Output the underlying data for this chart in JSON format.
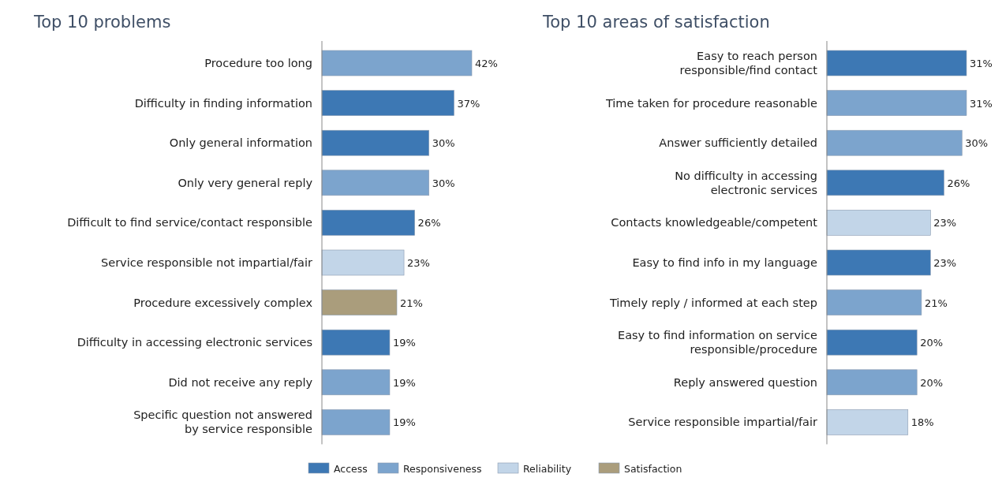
{
  "chart_data": [
    {
      "type": "bar",
      "title": "Top 10 problems",
      "orientation": "horizontal",
      "legend": "bottom",
      "categories": [
        "Procedure too long",
        "Difficulty in finding information",
        "Only general information",
        "Only very general reply",
        "Difficult to find service/contact responsible",
        "Service responsible not impartial/fair",
        "Procedure excessively complex",
        "Difficulty in accessing electronic services",
        "Did not receive any reply",
        "Specific question not answered\nby service responsible"
      ],
      "series": [
        {
          "name": "Access",
          "color": "#3d78b4",
          "values": [
            null,
            37,
            30,
            null,
            26,
            null,
            null,
            19,
            null,
            null
          ],
          "value_labels": [
            null,
            "37%",
            "30%",
            null,
            "26%",
            null,
            null,
            "19%",
            null,
            null
          ]
        },
        {
          "name": "Responsiveness",
          "color": "#7ca4cd",
          "values": [
            42,
            null,
            null,
            30,
            null,
            null,
            null,
            null,
            19,
            19
          ],
          "value_labels": [
            "42%",
            null,
            null,
            "30%",
            null,
            null,
            null,
            null,
            "19%",
            "19%"
          ]
        },
        {
          "name": "Reliability",
          "color": "#c2d5e8",
          "values": [
            null,
            null,
            null,
            null,
            null,
            23,
            null,
            null,
            null,
            null
          ],
          "value_labels": [
            null,
            null,
            null,
            null,
            null,
            "23%",
            null,
            null,
            null,
            null
          ]
        },
        {
          "name": "Satisfaction",
          "color": "#aa9d7c",
          "values": [
            null,
            null,
            null,
            null,
            null,
            null,
            21,
            null,
            null,
            null
          ],
          "value_labels": [
            null,
            null,
            null,
            null,
            null,
            null,
            "21%",
            null,
            null,
            null
          ]
        }
      ]
    },
    {
      "type": "bar",
      "title": "Top 10 areas of satisfaction",
      "orientation": "horizontal",
      "categories": [
        "Easy to reach person\nresponsible/find contact",
        "Time taken for procedure reasonable",
        "Answer sufficiently detailed",
        "No difficulty in accessing\nelectronic services",
        "Contacts knowledgeable/competent",
        "Easy to find info in my language",
        "Timely reply / informed at each step",
        "Easy to find information on service\nresponsible/procedure",
        "Reply answered question",
        "Service responsible impartial/fair"
      ],
      "series": [
        {
          "color": "#3d78b4",
          "values": [
            31,
            null,
            null,
            26,
            null,
            23,
            null,
            20,
            null,
            null
          ],
          "value_labels": [
            "31%",
            null,
            null,
            "26%",
            null,
            "23%",
            null,
            "20%",
            null,
            null
          ]
        },
        {
          "color": "#7ca4cd",
          "values": [
            null,
            31,
            30,
            null,
            null,
            null,
            21,
            null,
            20,
            null
          ],
          "value_labels": [
            null,
            "31%",
            "30%",
            null,
            null,
            null,
            "21%",
            null,
            "20%",
            null
          ]
        },
        {
          "color": "#c2d5e8",
          "values": [
            null,
            null,
            null,
            null,
            23,
            null,
            null,
            null,
            null,
            18
          ],
          "value_labels": [
            null,
            null,
            null,
            null,
            "23%",
            null,
            null,
            null,
            null,
            "18%"
          ]
        }
      ]
    }
  ]
}
